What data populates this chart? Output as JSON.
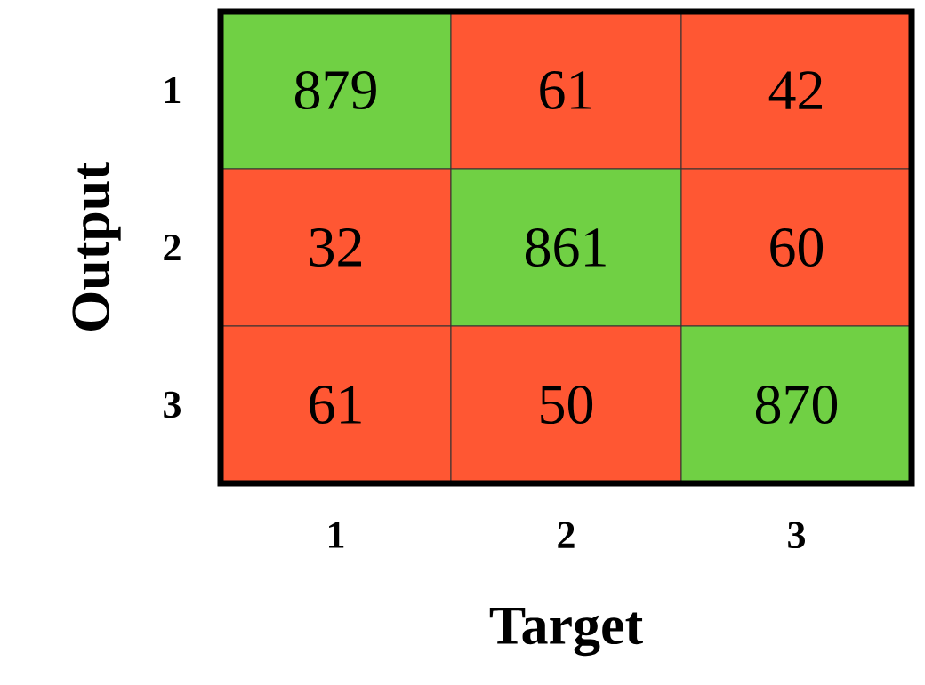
{
  "chart_data": {
    "type": "heatmap",
    "xlabel": "Target",
    "ylabel": "Output",
    "categories": [
      "1",
      "2",
      "3"
    ],
    "y_categories": [
      "1",
      "2",
      "3"
    ],
    "cells": [
      [
        879,
        61,
        42
      ],
      [
        32,
        861,
        60
      ],
      [
        61,
        50,
        870
      ]
    ],
    "colors": [
      [
        "#70d044",
        "#ff5733",
        "#ff5733"
      ],
      [
        "#ff5733",
        "#70d044",
        "#ff5733"
      ],
      [
        "#ff5733",
        "#ff5733",
        "#70d044"
      ]
    ],
    "data_labels": true
  }
}
